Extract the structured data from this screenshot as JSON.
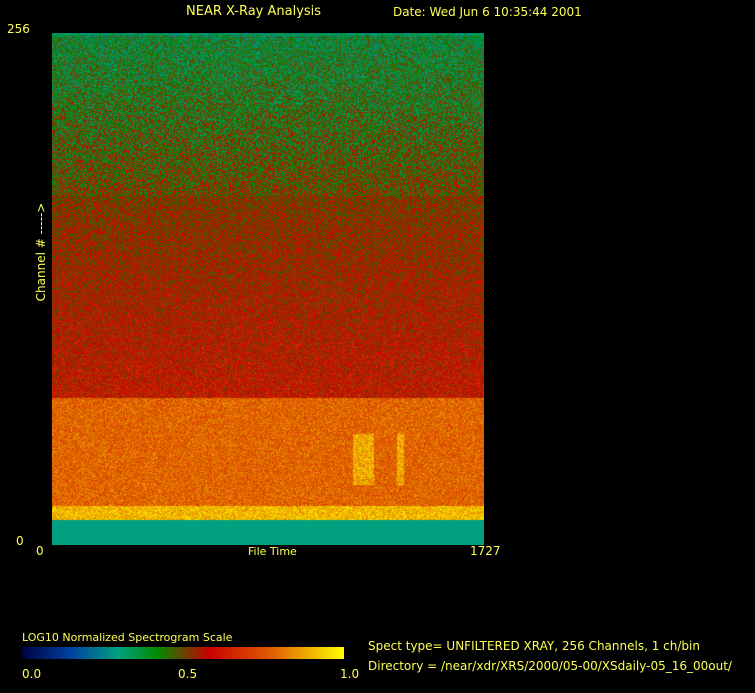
{
  "header": {
    "title": "NEAR X-Ray Analysis",
    "date": "Date: Wed Jun  6 10:35:44 2001"
  },
  "chart_data": {
    "type": "heatmap",
    "title": "NEAR X-Ray Analysis",
    "xlabel": "File Time",
    "ylabel": "Channel # ----->",
    "xlim": [
      0,
      1727
    ],
    "ylim": [
      0,
      256
    ],
    "x_tick_labels": [
      "0",
      "1727"
    ],
    "y_tick_labels": [
      "0",
      "256"
    ],
    "colorbar": {
      "label": "LOG10 Normalized Spectrogram Scale",
      "range": [
        0.0,
        1.0
      ],
      "tick_labels": [
        "0.0",
        "0.5",
        "1.0"
      ],
      "colors": [
        "#000040",
        "#0040a0",
        "#00a080",
        "#008c00",
        "#c80000",
        "#e06000",
        "#ffff00"
      ]
    },
    "bands": [
      {
        "channels": [
          0,
          13
        ],
        "level": 0.3
      },
      {
        "channels": [
          13,
          74
        ],
        "level": 0.82
      },
      {
        "channels": [
          74,
          175
        ],
        "level": 0.6
      },
      {
        "channels": [
          175,
          256
        ],
        "level": 0.42
      }
    ]
  },
  "info": {
    "spect_type": "Spect type= UNFILTERED XRAY,  256 Channels,  1 ch/bin",
    "directory": "Directory = /near/xdr/XRS/2000/05-00/XSdaily-05_16_00out/"
  }
}
